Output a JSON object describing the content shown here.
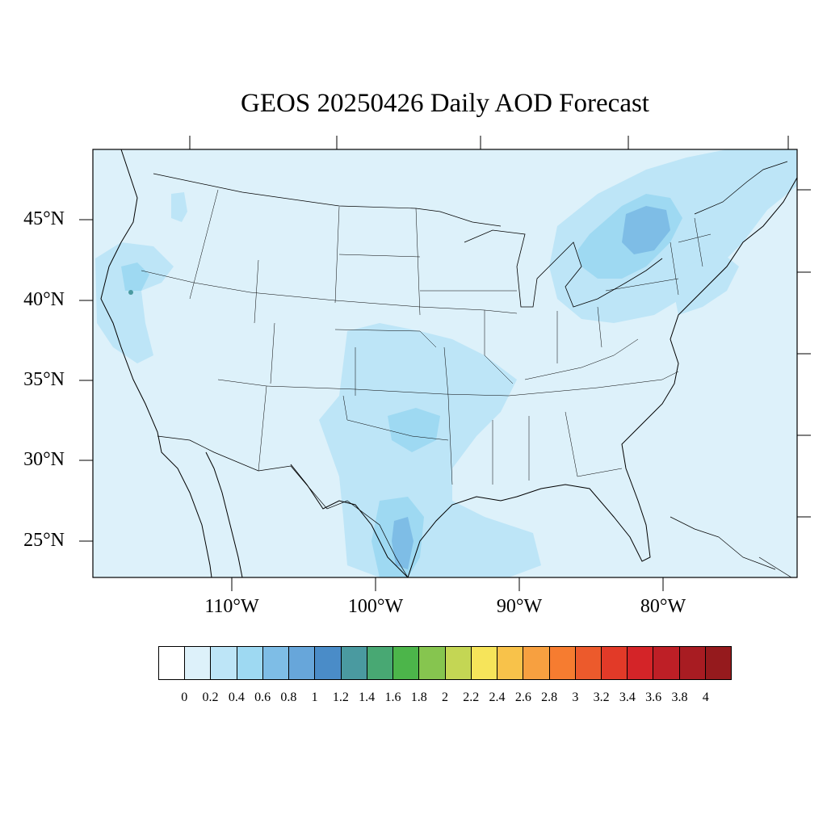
{
  "title": "GEOS 20250426 Daily AOD Forecast",
  "map": {
    "background_color": "#ddf1fa",
    "lat_labels": [
      "45°N",
      "40°N",
      "35°N",
      "30°N",
      "25°N"
    ],
    "lon_labels": [
      "110°W",
      "100°W",
      "90°W",
      "80°W"
    ]
  },
  "colorbar": {
    "colors": [
      "#ffffff",
      "#ddf1fa",
      "#bde5f7",
      "#9ed9f2",
      "#7ebde6",
      "#67a6da",
      "#4a8cc8",
      "#4a9aa0",
      "#48a873",
      "#4cb54a",
      "#86c54f",
      "#c4d654",
      "#f6e45a",
      "#f8c24a",
      "#f7a040",
      "#f67c30",
      "#ec5a2c",
      "#e23a28",
      "#d42428",
      "#be1f26",
      "#a81c22",
      "#951a1d"
    ],
    "labels": [
      "0",
      "0.2",
      "0.4",
      "0.6",
      "0.8",
      "1",
      "1.2",
      "1.4",
      "1.6",
      "1.8",
      "2",
      "2.2",
      "2.4",
      "2.6",
      "2.8",
      "3",
      "3.2",
      "3.4",
      "3.6",
      "3.8",
      "4"
    ]
  }
}
